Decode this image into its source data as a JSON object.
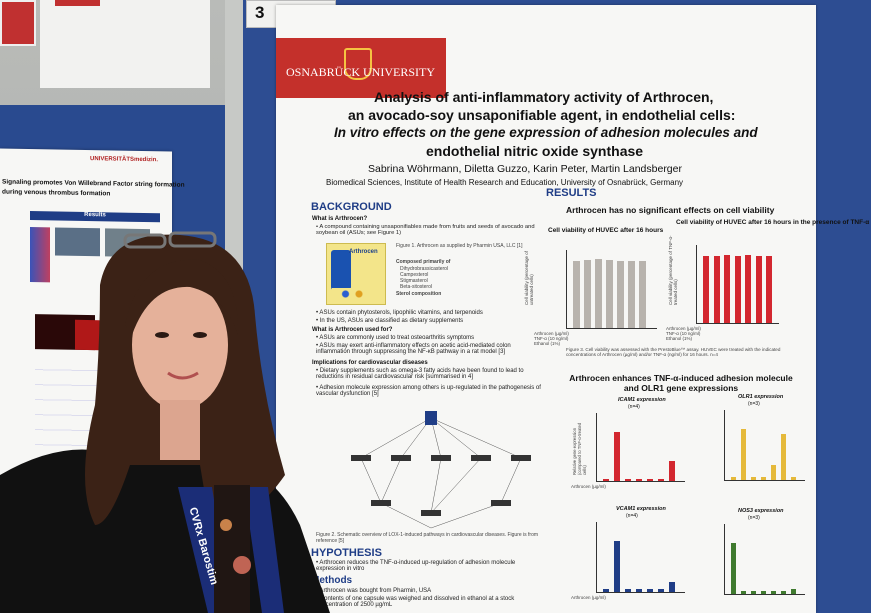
{
  "sign_number": "3",
  "header": {
    "university": "OSNABRÜCK UNIVERSITY"
  },
  "poster": {
    "title_line1": "Analysis of anti-inflammatory activity of Arthrocen,",
    "title_line2": "an avocado-soy unsaponifiable agent, in endothelial cells:",
    "title_line3": "In vitro effects on the gene expression of adhesion molecules and",
    "title_line4": "endothelial nitric oxide synthase",
    "authors": "Sabrina Wöhrmann, Diletta Guzzo, Karin Peter, Martin Landsberger",
    "affiliation": "Biomedical Sciences, Institute of Health Research and Education, University of Osnabrück, Germany",
    "background_heading": "BACKGROUND",
    "background_q1": "What is Arthrocen?",
    "background_p1": "• A compound containing unsaponifiables made from fruits and seeds of avocado and soybean oil (ASUs; see Figure 1)",
    "product_label": "Arthrocen",
    "figure1_caption": "Figure 1. Arthrocen as supplied by Pharmin USA, LLC [1]",
    "composed_heading": "Composed primarily of",
    "composed_items": [
      "Dihydrobrassicasterol",
      "Campesterol",
      "Stigmasterol",
      "Beta-sitosterol"
    ],
    "sterol_heading": "Sterol composition",
    "bg_bullet2": "• ASUs contain phytosterols, lipophilic vitamins, and terpenoids",
    "bg_bullet3": "• In the US, ASUs are classified as dietary supplements",
    "background_q2": "What is Arthrocen used for?",
    "bg_bullet4": "• ASUs are commonly used to treat osteoarthritis symptoms",
    "bg_bullet5": "• ASUs may exert anti-inflammatory effects on acetic acid-mediated colon inflammation through suppressing the NF-κB pathway in a rat model [3]",
    "implications_heading": "Implications for cardiovascular diseases",
    "bg_bullet6": "• Dietary supplements such as omega-3 fatty acids have been found to lead to reductions in residual cardiovascular risk [summarised in 4]",
    "bg_bullet7": "• Adhesion molecule expression among others is up-regulated in the pathogenesis of vascular dysfunction [5]",
    "figure2_caption": "Figure 2. Schematic overview of LOX-1-induced pathways in cardiovascular diseases. Figure is from reference [5]",
    "hypothesis_heading": "HYPOTHESIS",
    "hypothesis_text": "• Arthrocen reduces the TNF-α-induced up-regulation of adhesion molecule expression in vitro",
    "methods_heading": "Methods",
    "methods_b1": "• Arthrocen was bought from Pharmin, USA",
    "methods_b2": "• Contents of one capsule was weighed and dissolved in ethanol at a stock concentration of 2500 µg/mL",
    "results_heading": "RESULTS",
    "results_sub1": "Arthrocen has no significant effects on cell viability",
    "chart1_title": "Cell viability of HUVEC after 16 hours",
    "chart2_title": "Cell viability of HUVEC after 16 hours in the presence of TNF-α",
    "chart1_ylabel": "Cell viability (percentage of untreated cells)",
    "chart2_ylabel": "Cell viability (percentage of TNF-α-treated cells)",
    "figure3_caption": "Figure 3. Cell viability was assessed with the PrestoBlue™ assay. HUVEC were treated with the indicated concentrations of Arthrocen (µg/ml) and/or TNF-α (ng/ml) for 16 hours. n=4",
    "results_sub2": "Arthrocen enhances TNF-α-induced adhesion molecule and OLR1 gene expressions",
    "icam1_title": "ICAM1 expression",
    "icam1_n": "(n=4)",
    "olr1_title": "OLR1 expression",
    "olr1_n": "(n=3)",
    "vcam1_title": "VCAM1 expression",
    "vcam1_n": "(n=4)",
    "nos3_title": "NOS3 expression",
    "nos3_n": "(n=3)",
    "expr_ylabel": "Relative gene expression (compared to TNF-α-treated cells)",
    "row_labels": [
      "Arthrocen (µg/ml)",
      "TNF-α (10 ng/ml)",
      "Ethanol (1%)"
    ],
    "conc_labels": [
      "0.3",
      "0.9",
      "2.7",
      "8.3",
      "25"
    ]
  },
  "left_poster": {
    "logo": "UNIVERSITÄTSmedizin.",
    "title_a": "Signaling promotes Von Willebrand Factor string formation",
    "title_b": "during venous thrombus formation",
    "results_label": "Results"
  },
  "lanyard_text": "CVRx  Barostim",
  "chart_values": {
    "viability_untreated": [
      100,
      101,
      102,
      101,
      100,
      99,
      100
    ],
    "viability_tnf": [
      100,
      100,
      101,
      100,
      101,
      100,
      100
    ],
    "icam1": [
      0.05,
      1,
      0.05,
      0.05,
      0.05,
      0.05,
      0.4
    ],
    "olr1": [
      0.05,
      1,
      0.05,
      0.05,
      0.3,
      0.9,
      0.05
    ],
    "vcam1": [
      0.05,
      1,
      0.05,
      0.05,
      0.05,
      0.05,
      0.2
    ],
    "nos3": [
      1,
      0.05,
      0.05,
      0.05,
      0.05,
      0.05,
      0.1
    ]
  }
}
